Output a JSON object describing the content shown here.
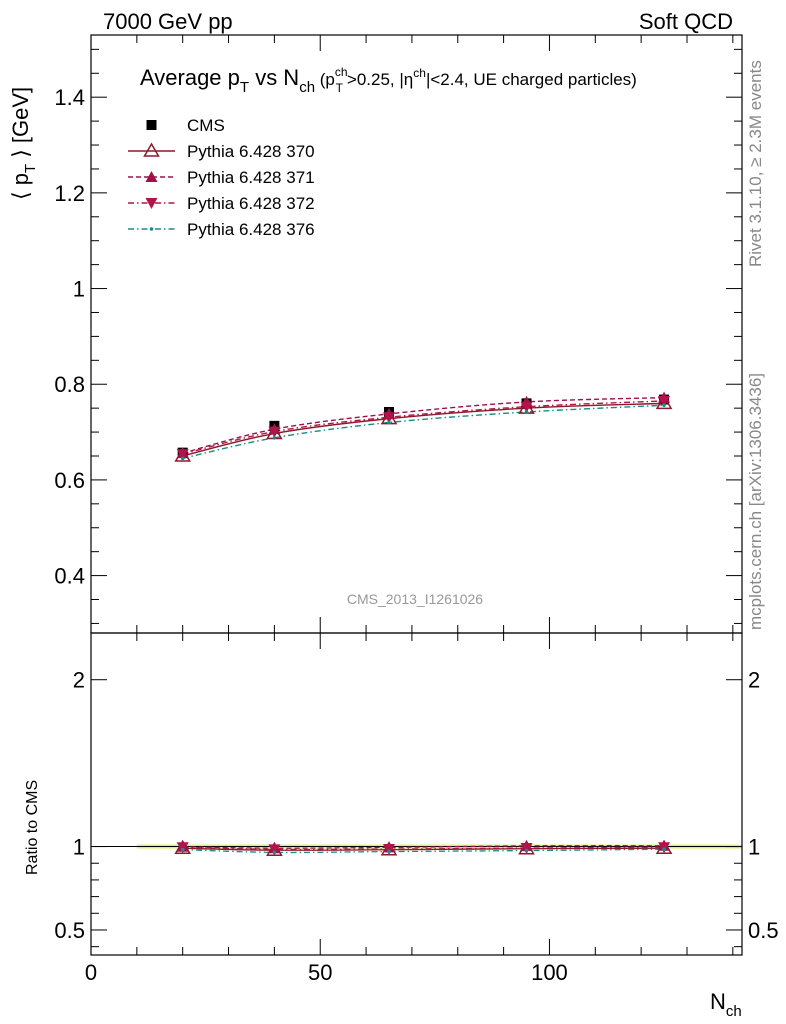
{
  "header": {
    "left_label": "7000 GeV pp",
    "right_label": "Soft QCD"
  },
  "side_labels": {
    "rivet": "Rivet 3.1.10, ≥ 2.3M events",
    "mcplots": "mcplots.cern.ch [arXiv:1306.3436]"
  },
  "watermark": "CMS_2013_I1261026",
  "chart_data": [
    {
      "type": "line",
      "panel": "main",
      "title": "Average p_T vs N_ch (p_T^ch>0.25, |η^ch|<2.4, UE charged particles)",
      "title_parts": {
        "a": "Average p",
        "a_sub": "T",
        "b": " vs N",
        "b_sub": "ch",
        "c": " (p",
        "c_sup": "ch",
        "c_sub": "T",
        "d": ">0.25, |η",
        "d_sup": "ch",
        "e": "|<2.4, UE charged particles)"
      },
      "ylabel": "⟨ p_T ⟩ [GeV]",
      "ylabel_parts": {
        "a": "⟨ p",
        "sub": "T",
        "b": " ⟩ [GeV]"
      },
      "xlim": [
        0,
        142
      ],
      "ylim": [
        0.28,
        1.53
      ],
      "yticks": [
        0.4,
        0.6,
        0.8,
        1.0,
        1.2,
        1.4
      ],
      "ytick_labels": [
        "0.4",
        "0.6",
        "0.8",
        "1",
        "1.2",
        "1.4"
      ],
      "x": [
        20,
        40,
        65,
        95,
        125
      ],
      "legend_position": "top-left",
      "series": [
        {
          "name": "CMS",
          "values": [
            0.657,
            0.713,
            0.742,
            0.76,
            0.768
          ],
          "color": "#000000",
          "marker": "square",
          "line": "none"
        },
        {
          "name": "Pythia 6.428 370",
          "values": [
            0.65,
            0.697,
            0.728,
            0.75,
            0.76
          ],
          "color": "#8b1a2a",
          "marker": "triangle-up-open",
          "line": "solid"
        },
        {
          "name": "Pythia 6.428 371",
          "values": [
            0.656,
            0.706,
            0.738,
            0.763,
            0.772
          ],
          "color": "#a0104a",
          "marker": "triangle-up",
          "line": "dashed"
        },
        {
          "name": "Pythia 6.428 372",
          "values": [
            0.654,
            0.701,
            0.731,
            0.753,
            0.765
          ],
          "color": "#b0154a",
          "marker": "triangle-down",
          "line": "dashdot"
        },
        {
          "name": "Pythia 6.428 376",
          "values": [
            0.645,
            0.688,
            0.72,
            0.742,
            0.756
          ],
          "color": "#1a8b8b",
          "marker": "dot",
          "line": "dashdot"
        }
      ]
    },
    {
      "type": "line",
      "panel": "ratio",
      "ylabel": "Ratio to CMS",
      "xlabel": "N_ch",
      "xlabel_parts": {
        "a": "N",
        "sub": "ch"
      },
      "xlim": [
        0,
        142
      ],
      "ylim": [
        0.35,
        2.28
      ],
      "yticks": [
        0.5,
        1,
        2
      ],
      "ytick_labels": [
        "0.5",
        "1",
        "2"
      ],
      "xticks": [
        0,
        50,
        100
      ],
      "xtick_labels": [
        "0",
        "50",
        "100"
      ],
      "x": [
        20,
        40,
        65,
        95,
        125
      ],
      "band": {
        "x_range": [
          10,
          142
        ],
        "half_width": 0.012,
        "color": "#d6f07a"
      },
      "series": [
        {
          "name": "Pythia 6.428 370",
          "values": [
            0.99,
            0.978,
            0.981,
            0.987,
            0.99
          ]
        },
        {
          "name": "Pythia 6.428 371",
          "values": [
            0.999,
            0.99,
            0.995,
            1.004,
            1.005
          ]
        },
        {
          "name": "Pythia 6.428 372",
          "values": [
            0.996,
            0.983,
            0.985,
            0.991,
            0.996
          ]
        },
        {
          "name": "Pythia 6.428 376",
          "values": [
            0.982,
            0.965,
            0.97,
            0.976,
            0.984
          ]
        }
      ]
    }
  ]
}
